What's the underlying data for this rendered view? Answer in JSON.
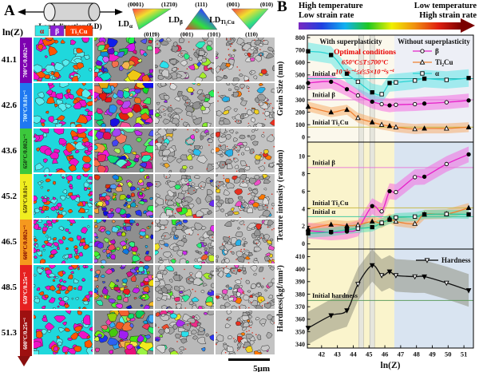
{
  "panel_a": {
    "label": "A",
    "load_direction_label": "Load direction(LD)",
    "lnz_header": "ln(Z)",
    "phase_legend": [
      {
        "label": "α",
        "color": "#35e6e6",
        "text_color": "#d40000"
      },
      {
        "label": "β",
        "color": "#8a1fd4",
        "text_color": "#ffffff"
      },
      {
        "label": "Ti₂Cu",
        "color": "#ff3d00",
        "text_color": "#ffffff"
      }
    ],
    "pole_figures": [
      {
        "prefix": "LD",
        "sub": "α",
        "corners": [
          "(0001)",
          "(12̄10)",
          "(011̄0)"
        ]
      },
      {
        "prefix": "LD",
        "sub": "β",
        "corners": [
          "(111)",
          "(001)",
          "(101)"
        ]
      },
      {
        "prefix": "LD",
        "sub": "Ti₂Cu",
        "corners": [
          "(001)",
          "(010)",
          "(110)"
        ]
      }
    ],
    "rows": [
      {
        "lnz": "41.1",
        "condition": "700°C/0.002s⁻¹",
        "color": "#7d00b0",
        "text_color": "#ffffff"
      },
      {
        "lnz": "42.6",
        "condition": "700°C/0.01s⁻¹",
        "color": "#1f78f0",
        "text_color": "#dffcff"
      },
      {
        "lnz": "43.6",
        "condition": "650°C/0.002s⁻¹",
        "color": "#3cc83c",
        "text_color": "#103010"
      },
      {
        "lnz": "45.2",
        "condition": "650°C/0.01s⁻¹",
        "color": "#f0ee20",
        "text_color": "#403000"
      },
      {
        "lnz": "46.5",
        "condition": "600°C/0.002s⁻¹",
        "color": "#f5991e",
        "text_color": "#7a0000"
      },
      {
        "lnz": "48.5",
        "condition": "650°C/0.25s⁻¹",
        "color": "#e62020",
        "text_color": "#ffffff"
      },
      {
        "lnz": "51.3",
        "condition": "600°C/0.25s⁻¹",
        "color": "#9e1010",
        "text_color": "#ffffff"
      }
    ],
    "scale_bar": "5μm"
  },
  "panel_b": {
    "label": "B",
    "header": {
      "left_line1": "High temperature",
      "left_line2": "Low strain rate",
      "right_line1": "Low temperature",
      "right_line2": "High strain rate",
      "gradient": [
        "#7a28c0",
        "#2040e0",
        "#10b0f0",
        "#20c820",
        "#f0f000",
        "#f09010",
        "#e02010",
        "#7a0000"
      ]
    },
    "region_labels": {
      "with": "With superplasticity",
      "without": "Without superplasticity"
    },
    "regions": {
      "boundary": 46.6,
      "pillars": [
        [
          44.35,
          44.65
        ],
        [
          45.05,
          45.35
        ]
      ]
    },
    "optimal": [
      "Optimal conditions",
      "650°C≤T≤700°C",
      "10⁻³s⁻¹≤ε̇≤5×10⁻²s⁻¹"
    ],
    "optimal_color": "#e80000"
  },
  "chart_data": [
    {
      "type": "line",
      "ylabel": "Grain Size (nm)",
      "ylim": [
        0,
        800
      ],
      "yticks": [
        0,
        100,
        200,
        300,
        400,
        500,
        600,
        700,
        800
      ],
      "xlim": [
        41.1,
        51.6
      ],
      "x": [
        41.15,
        42.6,
        43.6,
        44.3,
        45.2,
        45.8,
        46.3,
        46.7,
        47.9,
        48.5,
        49.9,
        51.3
      ],
      "series": [
        {
          "name": "β",
          "marker": "circle",
          "color": "#e620c8",
          "band_color": "#f560e0",
          "band": 55,
          "values": [
            435,
            445,
            385,
            335,
            285,
            265,
            255,
            260,
            265,
            270,
            280,
            295
          ]
        },
        {
          "name": "Ti₂Cu",
          "marker": "triangle",
          "color": "#f08030",
          "band_color": "#f8a860",
          "band": 40,
          "values": [
            245,
            200,
            220,
            155,
            120,
            100,
            90,
            80,
            65,
            70,
            70,
            80
          ]
        },
        {
          "name": "α",
          "marker": "square",
          "color": "#2ad4d4",
          "band_color": "#55e6e6",
          "band": 70,
          "values": [
            690,
            660,
            510,
            445,
            360,
            345,
            435,
            440,
            455,
            470,
            460,
            475
          ]
        }
      ],
      "ref_lines": [
        {
          "label": "Initial α",
          "value": 470,
          "color": "#2ab4b4"
        },
        {
          "label": "Initial β",
          "value": 300,
          "color": "#e080d8"
        },
        {
          "label": "Initial Ti₂Cu",
          "value": 80,
          "color": "#c8b840"
        }
      ],
      "legend": [
        "β",
        "Ti₂Cu",
        "α"
      ]
    },
    {
      "type": "line",
      "ylabel": "Texture intensity (random)",
      "ylim": [
        0,
        11
      ],
      "yticks": [
        0,
        2,
        4,
        6,
        8,
        10
      ],
      "xlim": [
        41.1,
        51.6
      ],
      "x": [
        41.15,
        42.6,
        43.6,
        44.3,
        45.2,
        45.8,
        46.3,
        46.7,
        47.9,
        48.5,
        49.9,
        51.3
      ],
      "series": [
        {
          "name": "β",
          "marker": "circle",
          "color": "#e620c8",
          "band_color": "#f560e0",
          "band": 0.9,
          "values": [
            1.5,
            1.3,
            1.4,
            1.75,
            4.3,
            3.7,
            6.0,
            5.9,
            7.6,
            7.65,
            9.1,
            10.2
          ]
        },
        {
          "name": "Ti₂Cu",
          "marker": "triangle",
          "color": "#f08030",
          "band_color": "#f8a860",
          "band": 0.55,
          "values": [
            1.7,
            2.2,
            2.05,
            2.15,
            2.55,
            2.35,
            2.9,
            2.55,
            2.3,
            3.35,
            3.4,
            4.1
          ]
        },
        {
          "name": "α",
          "marker": "square",
          "color": "#28c89c",
          "band_color": "#50dcb4",
          "band": 0.5,
          "values": [
            1.2,
            1.35,
            1.6,
            1.75,
            1.9,
            2.4,
            2.75,
            3.0,
            3.1,
            3.35,
            3.4,
            3.35
          ]
        }
      ],
      "ref_lines": [
        {
          "label": "Initial β",
          "value": 8.7,
          "color": "#e878d8"
        },
        {
          "label": "Initial Ti₂Cu",
          "value": 4.1,
          "color": "#c8b840"
        },
        {
          "label": "Initial α",
          "value": 3.1,
          "color": "#40c8a0"
        }
      ],
      "legend": []
    },
    {
      "type": "line",
      "ylabel": "Hardness(kgf/mm²)",
      "ylim": [
        340,
        410
      ],
      "yticks": [
        340,
        350,
        360,
        370,
        380,
        390,
        400,
        410
      ],
      "xlim": [
        41.1,
        51.6
      ],
      "xlabel": "ln(Z)",
      "xticks": [
        42,
        43,
        44,
        45,
        46,
        47,
        48,
        49,
        50,
        51
      ],
      "x": [
        41.15,
        42.6,
        43.6,
        44.3,
        45.2,
        45.8,
        46.3,
        46.7,
        47.9,
        48.5,
        49.9,
        51.3
      ],
      "series": [
        {
          "name": "Hardness",
          "marker": "tridown",
          "color": "#111111",
          "band_color": "#8a8a78",
          "band": 13,
          "values": [
            353,
            363,
            367,
            388,
            403,
            395,
            398,
            395,
            394,
            394,
            389,
            383
          ]
        }
      ],
      "ref_lines": [
        {
          "label": "Initial hardness",
          "value": 375,
          "color": "#5a9a5a"
        }
      ],
      "legend": [
        "Hardness"
      ]
    }
  ]
}
